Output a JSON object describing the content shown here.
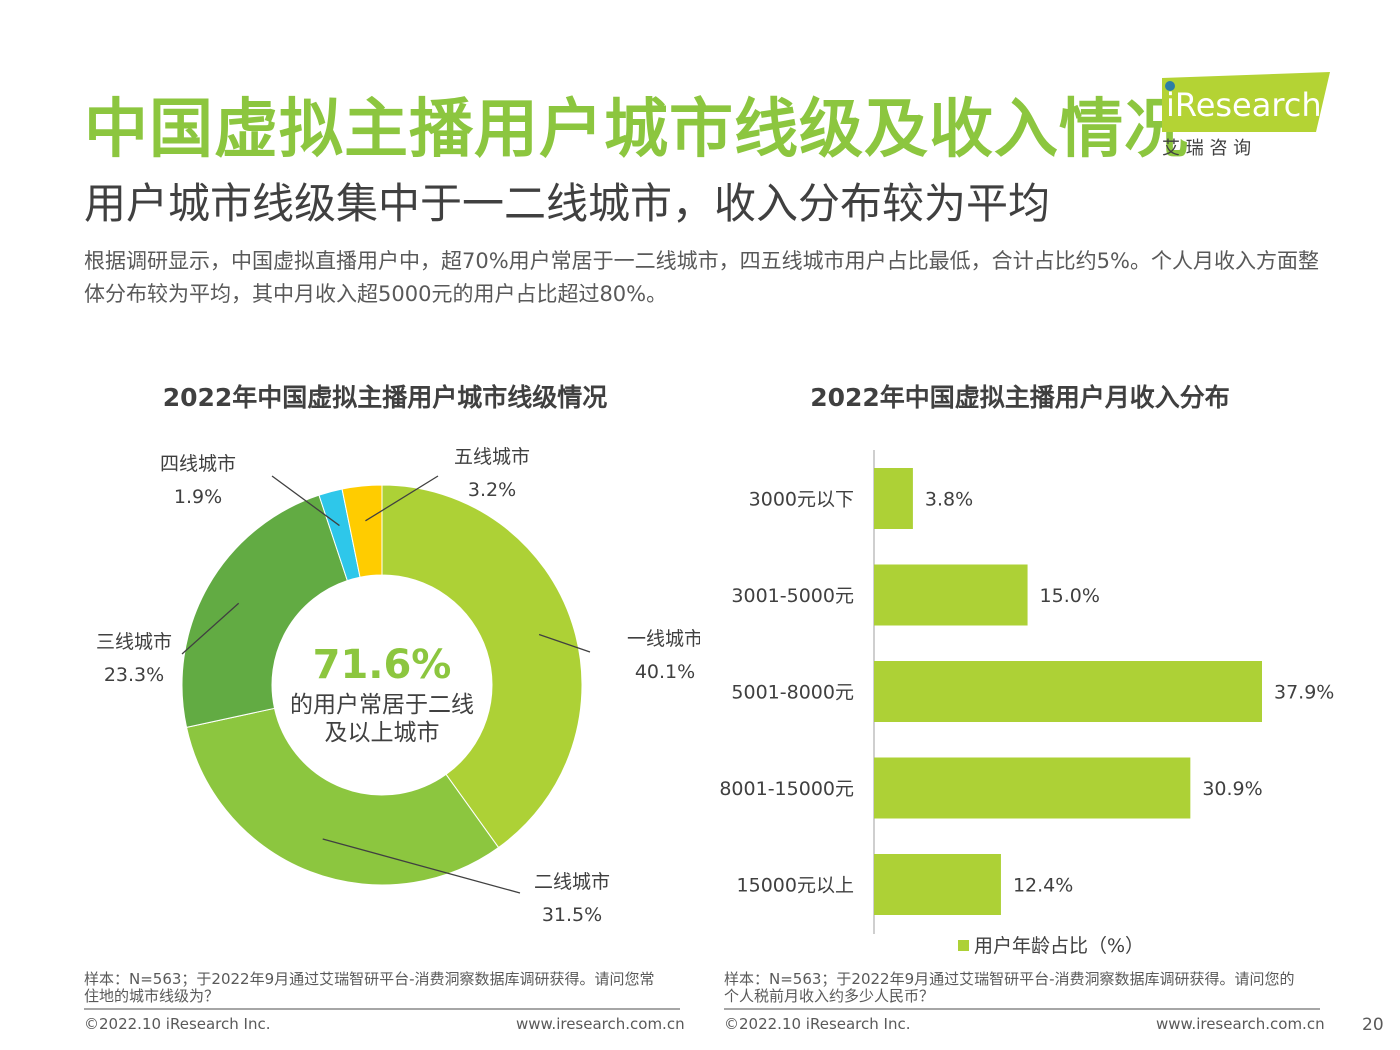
{
  "header": {
    "title": "中国虚拟主播用户城市线级及收入情况",
    "subtitle": "用户城市线级集中于一二线城市，收入分布较为平均",
    "intro": "根据调研显示，中国虚拟直播用户中，超70%用户常居于一二线城市，四五线城市用户占比最低，合计占比约5%。个人月收入方面整体分布较为平均，其中月收入超5000元的用户占比超过80%。"
  },
  "logo": {
    "brand": "iResearch",
    "cn": "艾 瑞 咨 询",
    "accent": "#b4d334",
    "text_color": "#ffffff"
  },
  "colors": {
    "tier1": "#add136",
    "tier2": "#8cc63f",
    "tier3": "#62ab43",
    "tier4": "#2ec7ea",
    "tier5": "#ffcc00",
    "bar": "#add136",
    "title_green": "#8cc63f"
  },
  "chart_data": [
    {
      "type": "pie",
      "title": "2022年中国虚拟主播用户城市线级情况",
      "hole": true,
      "categories": [
        "一线城市",
        "二线城市",
        "三线城市",
        "四线城市",
        "五线城市"
      ],
      "values": [
        40.1,
        31.5,
        23.3,
        1.9,
        3.2
      ],
      "labels": [
        "40.1%",
        "31.5%",
        "23.3%",
        "1.9%",
        "3.2%"
      ],
      "center": {
        "value": "71.6%",
        "line1": "的用户常居于二线",
        "line2": "及以上城市"
      }
    },
    {
      "type": "bar",
      "orientation": "horizontal",
      "title": "2022年中国虚拟主播用户月收入分布",
      "categories": [
        "3000元以下",
        "3001-5000元",
        "5001-8000元",
        "8001-15000元",
        "15000元以上"
      ],
      "values": [
        3.8,
        15.0,
        37.9,
        30.9,
        12.4
      ],
      "labels": [
        "3.8%",
        "15.0%",
        "37.9%",
        "30.9%",
        "12.4%"
      ],
      "legend": "用户年龄占比（%）"
    }
  ],
  "notes": {
    "left": [
      "样本：N=563；于2022年9月通过艾瑞智研平台-消费洞察数据库调研获得。请问您常",
      "住地的城市线级为？"
    ],
    "right": [
      "样本：N=563；于2022年9月通过艾瑞智研平台-消费洞察数据库调研获得。请问您的",
      "个人税前月收入约多少人民币？"
    ]
  },
  "footer": {
    "copyright": "©2022.10 iResearch Inc.",
    "url": "www.iresearch.com.cn",
    "page": "20"
  }
}
